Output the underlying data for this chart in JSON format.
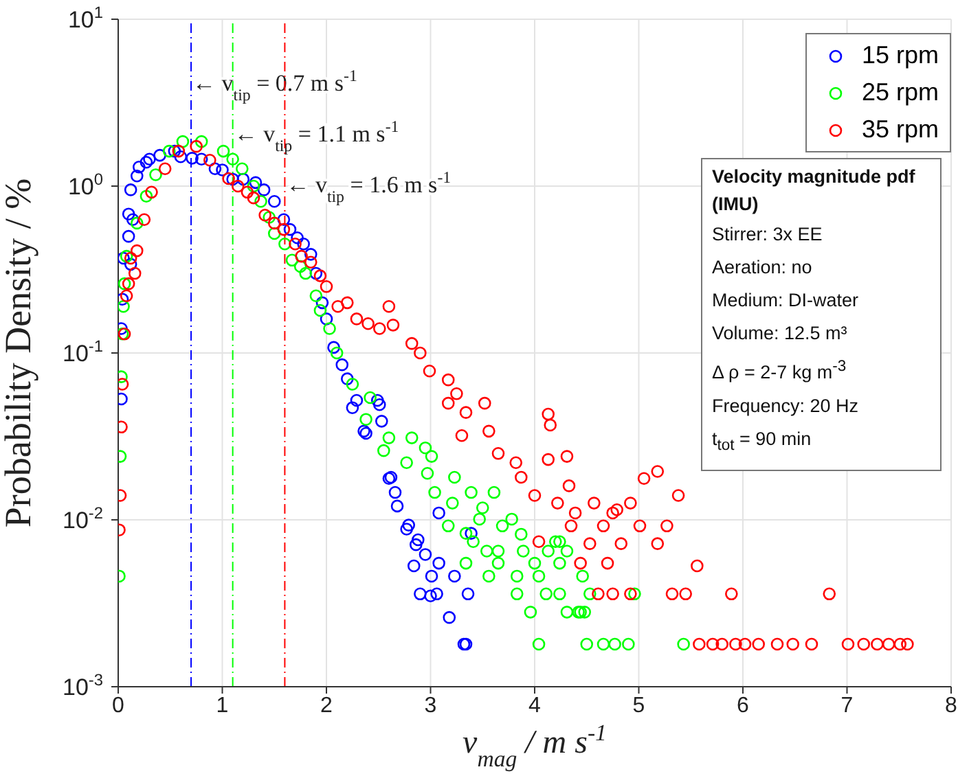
{
  "chart_data": {
    "type": "scatter",
    "xlabel": "v$_{mag}$ / m s$^{-1}$",
    "ylabel": "Probability Density / %",
    "log": "y",
    "grid": true,
    "legend": "top right",
    "marker": "circle",
    "xlim": [
      0,
      8
    ],
    "xticks": [
      0,
      1,
      2,
      3,
      4,
      5,
      6,
      7,
      8
    ],
    "ylim": [
      0.001,
      10
    ],
    "yticks": [
      {
        "value": 0.001,
        "label": "10$^{-3}$"
      },
      {
        "value": 0.01,
        "label": "10$^{-2}$"
      },
      {
        "value": 0.1,
        "label": "10$^{-1}$"
      },
      {
        "value": 1,
        "label": "10$^{0}$"
      },
      {
        "value": 10,
        "label": "10$^{1}$"
      }
    ],
    "series": [
      {
        "name": "15 rpm",
        "color": "#0000ff",
        "x": [
          0.03,
          0.03,
          0.04,
          0.05,
          0.1,
          0.12,
          0.14,
          0.1,
          0.12,
          0.18,
          0.2,
          0.27,
          0.3,
          0.4,
          0.54,
          0.6,
          0.71,
          0.8,
          0.93,
          1.0,
          1.1,
          1.2,
          1.32,
          1.4,
          1.5,
          1.59,
          1.65,
          1.72,
          1.78,
          1.85,
          1.9,
          1.96,
          2.0,
          2.07,
          2.15,
          2.2,
          2.25,
          2.29,
          2.36,
          2.38,
          2.49,
          2.51,
          2.53,
          2.6,
          2.62,
          2.66,
          2.68,
          2.77,
          2.79,
          2.84,
          2.86,
          2.88,
          2.9,
          2.95,
          3.0,
          3.01,
          3.06,
          3.08,
          3.08,
          3.18,
          3.23,
          3.32,
          3.34,
          3.36,
          3.39
        ],
        "values": [
          0.053,
          0.14,
          0.21,
          0.37,
          0.5,
          0.34,
          0.63,
          0.68,
          0.95,
          1.15,
          1.3,
          1.39,
          1.45,
          1.53,
          1.62,
          1.5,
          1.47,
          1.45,
          1.27,
          1.25,
          1.1,
          1.1,
          1.05,
          0.95,
          0.81,
          0.63,
          0.55,
          0.49,
          0.45,
          0.39,
          0.3,
          0.2,
          0.16,
          0.108,
          0.085,
          0.07,
          0.047,
          0.052,
          0.034,
          0.033,
          0.052,
          0.049,
          0.039,
          0.0177,
          0.018,
          0.0146,
          0.0121,
          0.0088,
          0.0093,
          0.0053,
          0.0071,
          0.0076,
          0.0036,
          0.0062,
          0.0035,
          0.0046,
          0.0036,
          0.011,
          0.0055,
          0.0026,
          0.0046,
          0.0018,
          0.0018,
          0.0036,
          0.0083
        ]
      },
      {
        "name": "25 rpm",
        "color": "#00ff00",
        "x": [
          0.01,
          0.02,
          0.03,
          0.04,
          0.05,
          0.06,
          0.08,
          0.18,
          0.27,
          0.36,
          0.49,
          0.62,
          0.8,
          1.01,
          1.1,
          1.19,
          1.3,
          1.37,
          1.45,
          1.5,
          1.6,
          1.67,
          1.75,
          1.8,
          1.9,
          1.94,
          2.03,
          2.1,
          2.25,
          2.38,
          2.42,
          2.55,
          2.6,
          2.77,
          2.82,
          2.95,
          2.97,
          3.01,
          3.04,
          3.17,
          3.21,
          3.23,
          3.34,
          3.34,
          3.39,
          3.41,
          3.47,
          3.5,
          3.54,
          3.56,
          3.61,
          3.65,
          3.65,
          3.69,
          3.78,
          3.83,
          3.83,
          3.87,
          3.89,
          3.96,
          4.0,
          4.04,
          4.04,
          4.11,
          4.13,
          4.2,
          4.24,
          4.24,
          4.24,
          4.31,
          4.31,
          4.42,
          4.44,
          4.46,
          4.48,
          4.5,
          4.53,
          4.66,
          4.77,
          4.9,
          4.96,
          5.43
        ],
        "values": [
          0.0046,
          0.024,
          0.072,
          0.13,
          0.19,
          0.26,
          0.38,
          0.6,
          0.87,
          1.17,
          1.62,
          1.85,
          1.85,
          1.62,
          1.45,
          1.27,
          1.0,
          0.81,
          0.65,
          0.52,
          0.45,
          0.36,
          0.33,
          0.3,
          0.22,
          0.18,
          0.14,
          0.1,
          0.065,
          0.04,
          0.054,
          0.026,
          0.031,
          0.022,
          0.031,
          0.027,
          0.019,
          0.024,
          0.0146,
          0.0092,
          0.0126,
          0.018,
          0.0083,
          0.0055,
          0.0146,
          0.0074,
          0.0101,
          0.0118,
          0.0065,
          0.0046,
          0.0146,
          0.0065,
          0.0055,
          0.0092,
          0.0101,
          0.0046,
          0.0036,
          0.0082,
          0.0065,
          0.0028,
          0.0055,
          0.0046,
          0.0018,
          0.0036,
          0.0065,
          0.0074,
          0.0074,
          0.0055,
          0.0036,
          0.0065,
          0.0028,
          0.0028,
          0.0028,
          0.0046,
          0.0028,
          0.0018,
          0.0036,
          0.0018,
          0.0018,
          0.0018,
          0.0036,
          0.0018
        ]
      },
      {
        "name": "35 rpm",
        "color": "#ff0000",
        "x": [
          0.01,
          0.02,
          0.03,
          0.04,
          0.06,
          0.08,
          0.1,
          0.12,
          0.16,
          0.18,
          0.25,
          0.32,
          0.45,
          0.58,
          0.75,
          0.88,
          1.06,
          1.15,
          1.24,
          1.3,
          1.41,
          1.5,
          1.59,
          1.7,
          1.76,
          1.85,
          1.94,
          2.0,
          2.11,
          2.2,
          2.29,
          2.4,
          2.51,
          2.6,
          2.64,
          2.82,
          2.9,
          2.99,
          3.17,
          3.17,
          3.25,
          3.3,
          3.34,
          3.52,
          3.56,
          3.65,
          3.82,
          3.87,
          4.0,
          4.04,
          4.13,
          4.15,
          4.13,
          4.22,
          4.31,
          4.33,
          4.35,
          4.39,
          4.44,
          4.53,
          4.57,
          4.61,
          4.66,
          4.7,
          4.75,
          4.75,
          4.79,
          4.83,
          4.92,
          4.92,
          5.01,
          5.05,
          5.18,
          5.18,
          5.27,
          5.32,
          5.38,
          5.45,
          5.56,
          5.58,
          5.71,
          5.8,
          5.89,
          5.93,
          6.02,
          6.15,
          6.33,
          6.48,
          6.66,
          6.83,
          7.01,
          7.16,
          7.29,
          7.4,
          7.51,
          7.58
        ],
        "values": [
          0.0087,
          0.014,
          0.036,
          0.065,
          0.13,
          0.22,
          0.26,
          0.37,
          0.3,
          0.41,
          0.63,
          0.92,
          1.27,
          1.62,
          1.73,
          1.43,
          1.11,
          1.0,
          0.92,
          0.85,
          0.67,
          0.6,
          0.55,
          0.45,
          0.38,
          0.35,
          0.29,
          0.25,
          0.19,
          0.2,
          0.16,
          0.15,
          0.14,
          0.19,
          0.147,
          0.114,
          0.1,
          0.078,
          0.069,
          0.05,
          0.057,
          0.032,
          0.044,
          0.05,
          0.034,
          0.025,
          0.022,
          0.018,
          0.014,
          0.0074,
          0.043,
          0.037,
          0.023,
          0.0126,
          0.024,
          0.016,
          0.0092,
          0.011,
          0.0055,
          0.0072,
          0.0126,
          0.0036,
          0.0092,
          0.0055,
          0.011,
          0.0036,
          0.0115,
          0.0072,
          0.0126,
          0.0036,
          0.0092,
          0.0177,
          0.0195,
          0.0072,
          0.0092,
          0.0036,
          0.014,
          0.0036,
          0.0053,
          0.0018,
          0.0018,
          0.0018,
          0.0036,
          0.0018,
          0.0018,
          0.0018,
          0.0018,
          0.0018,
          0.0018,
          0.0036,
          0.0018,
          0.0018,
          0.0018,
          0.0018,
          0.0018,
          0.0018
        ]
      }
    ],
    "ref_lines": [
      {
        "axis": "x",
        "value": 0.7,
        "label": "← v$_{tip}$ = 0.7 m s$^{-1}$",
        "color": "#0000ff",
        "line_style": "dashed"
      },
      {
        "axis": "x",
        "value": 1.1,
        "label": "← v$_{tip}$ = 1.1 m s$^{-1}$",
        "color": "#00ff00",
        "line_style": "dashed"
      },
      {
        "axis": "x",
        "value": 1.6,
        "label": "← v$_{tip}$ = 1.6 m s$^{-1}$",
        "color": "#ff0000",
        "line_style": "dashed"
      }
    ],
    "annotations": [
      "Velocity magnitude pdf (IMU)",
      "Stirrer: 3x EE",
      "Aeration: no",
      "Medium: DI-water",
      "Volume: 12.5 m³",
      "Δ ρ = 2-7 kg m$^{-3}$",
      "Frequency: 20 Hz",
      "t$_{tot}$ = 90 min"
    ]
  }
}
